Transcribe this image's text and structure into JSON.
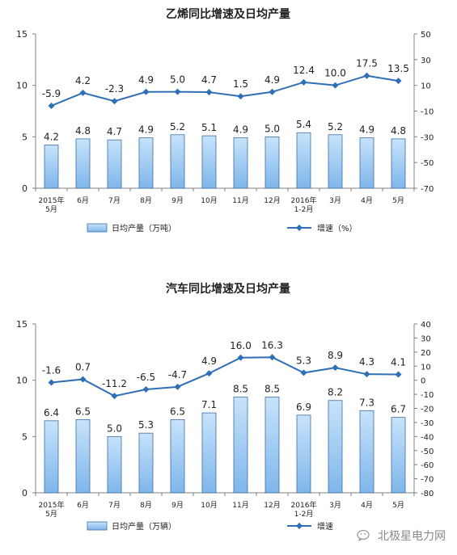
{
  "chart_data": [
    {
      "type": "bar+line",
      "title": "乙烯同比增速及日均产量",
      "categories": [
        [
          "2015年",
          "5月"
        ],
        [
          "6月"
        ],
        [
          "7月"
        ],
        [
          "8月"
        ],
        [
          "9月"
        ],
        [
          "10月"
        ],
        [
          "11月"
        ],
        [
          "12月"
        ],
        [
          "2016年",
          "1-2月"
        ],
        [
          "3月"
        ],
        [
          "4月"
        ],
        [
          "5月"
        ]
      ],
      "series": [
        {
          "name": "日均产量（万吨）",
          "kind": "bar",
          "axis": "left",
          "values": [
            4.2,
            4.8,
            4.7,
            4.9,
            5.2,
            5.1,
            4.9,
            5.0,
            5.4,
            5.2,
            4.9,
            4.8
          ]
        },
        {
          "name": "增速（%）",
          "kind": "line",
          "axis": "right",
          "values": [
            -5.9,
            4.2,
            -2.3,
            4.9,
            5.0,
            4.7,
            1.5,
            4.9,
            12.4,
            10.0,
            17.5,
            13.5
          ]
        }
      ],
      "left_axis": {
        "ylim": [
          0,
          15
        ],
        "ticks": [
          "0",
          "5",
          "10",
          "15"
        ]
      },
      "right_axis": {
        "ylim": [
          -70,
          50
        ],
        "ticks": [
          "-70",
          "-50",
          "-30",
          "-10",
          "10",
          "30",
          "50"
        ]
      },
      "bar_labels": [
        "4.2",
        "4.8",
        "4.7",
        "4.9",
        "5.2",
        "5.1",
        "4.9",
        "5.0",
        "5.4",
        "5.2",
        "4.9",
        "4.8"
      ],
      "line_labels": [
        "-5.9",
        "4.2",
        "-2.3",
        "4.9",
        "5.0",
        "4.7",
        "1.5",
        "4.9",
        "12.4",
        "10.0",
        "17.5",
        "13.5"
      ],
      "legend": {
        "position": "bottom",
        "bar": "日均产量（万吨）",
        "line": "增速（%）"
      }
    },
    {
      "type": "bar+line",
      "title": "汽车同比增速及日均产量",
      "categories": [
        [
          "2015年",
          "5月"
        ],
        [
          "6月"
        ],
        [
          "7月"
        ],
        [
          "8月"
        ],
        [
          "9月"
        ],
        [
          "10月"
        ],
        [
          "11月"
        ],
        [
          "12月"
        ],
        [
          "2016年",
          "1-2月"
        ],
        [
          "3月"
        ],
        [
          "4月"
        ],
        [
          "5月"
        ]
      ],
      "series": [
        {
          "name": "日均产量（万辆）",
          "kind": "bar",
          "axis": "left",
          "values": [
            6.4,
            6.5,
            5.0,
            5.3,
            6.5,
            7.1,
            8.5,
            8.5,
            6.9,
            8.2,
            7.3,
            6.7
          ]
        },
        {
          "name": "增速",
          "kind": "line",
          "axis": "right",
          "values": [
            -1.6,
            0.7,
            -11.2,
            -6.5,
            -4.7,
            4.9,
            16.0,
            16.3,
            5.3,
            8.9,
            4.3,
            4.1
          ]
        }
      ],
      "left_axis": {
        "ylim": [
          0,
          15
        ],
        "ticks": [
          "0",
          "5",
          "10",
          "15"
        ]
      },
      "right_axis": {
        "ylim": [
          -80,
          40
        ],
        "ticks": [
          "-80",
          "-70",
          "-60",
          "-50",
          "-40",
          "-30",
          "-20",
          "-10",
          "0",
          "10",
          "20",
          "30",
          "40"
        ]
      },
      "bar_labels": [
        "6.4",
        "6.5",
        "5.0",
        "5.3",
        "6.5",
        "7.1",
        "8.5",
        "8.5",
        "6.9",
        "8.2",
        "7.3",
        "6.7"
      ],
      "line_labels": [
        "-1.6",
        "0.7",
        "-11.2",
        "-6.5",
        "-4.7",
        "4.9",
        "16.0",
        "16.3",
        "5.3",
        "8.9",
        "4.3",
        "4.1"
      ],
      "legend": {
        "position": "bottom",
        "bar": "日均产量（万辆）",
        "line": "增速"
      }
    }
  ],
  "watermark": {
    "text": "北极星电力网",
    "icon": "wechat-icon"
  },
  "colors": {
    "bar_fill_top": "#c7e3fb",
    "bar_fill_bottom": "#7fb6ea",
    "bar_stroke": "#3f6f9f",
    "line": "#2f6fb5",
    "axis": "#808080",
    "text": "#222222"
  }
}
